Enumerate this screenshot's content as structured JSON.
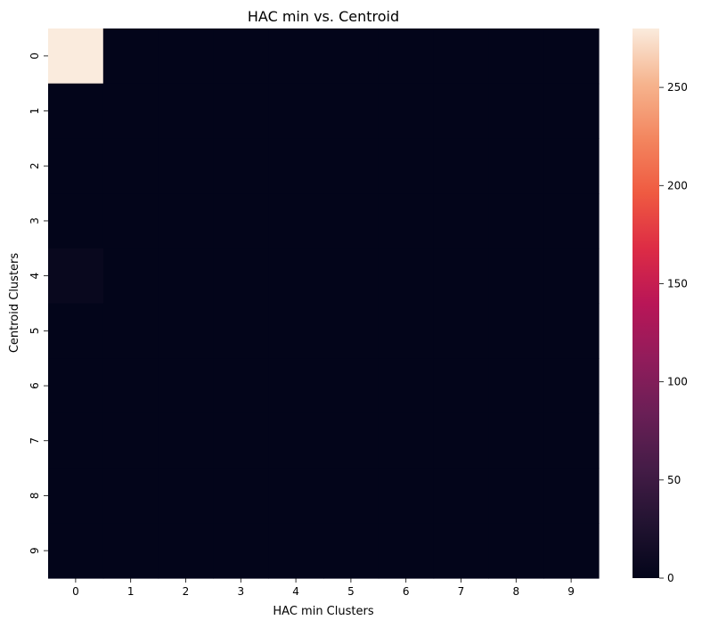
{
  "chart_data": {
    "type": "heatmap",
    "title": "HAC min  vs. Centroid",
    "xlabel": "HAC min Clusters",
    "ylabel": "Centroid Clusters",
    "x_categories": [
      "0",
      "1",
      "2",
      "3",
      "4",
      "5",
      "6",
      "7",
      "8",
      "9"
    ],
    "y_categories": [
      "0",
      "1",
      "2",
      "3",
      "4",
      "5",
      "6",
      "7",
      "8",
      "9"
    ],
    "values": [
      [
        280,
        0,
        0,
        0,
        0,
        0,
        0,
        0,
        0,
        0
      ],
      [
        0,
        0,
        0,
        0,
        0,
        0,
        0,
        0,
        0,
        0
      ],
      [
        0,
        0,
        0,
        0,
        0,
        0,
        0,
        0,
        0,
        0
      ],
      [
        0,
        0,
        0,
        0,
        0,
        0,
        0,
        0,
        0,
        0
      ],
      [
        5,
        0,
        0,
        0,
        0,
        0,
        0,
        0,
        0,
        0
      ],
      [
        0,
        0,
        0,
        0,
        0,
        0,
        0,
        0,
        0,
        0
      ],
      [
        0,
        0,
        0,
        0,
        0,
        0,
        0,
        0,
        0,
        0
      ],
      [
        0,
        0,
        0,
        0,
        0,
        0,
        0,
        0,
        0,
        0
      ],
      [
        0,
        0,
        0,
        0,
        0,
        0,
        0,
        0,
        0,
        0
      ],
      [
        0,
        0,
        0,
        0,
        0,
        0,
        0,
        0,
        0,
        0
      ]
    ],
    "colorbar": {
      "min": 0,
      "max": 280,
      "ticks": [
        0,
        50,
        100,
        150,
        200,
        250
      ]
    },
    "colormap": "rocket",
    "grid": false
  }
}
